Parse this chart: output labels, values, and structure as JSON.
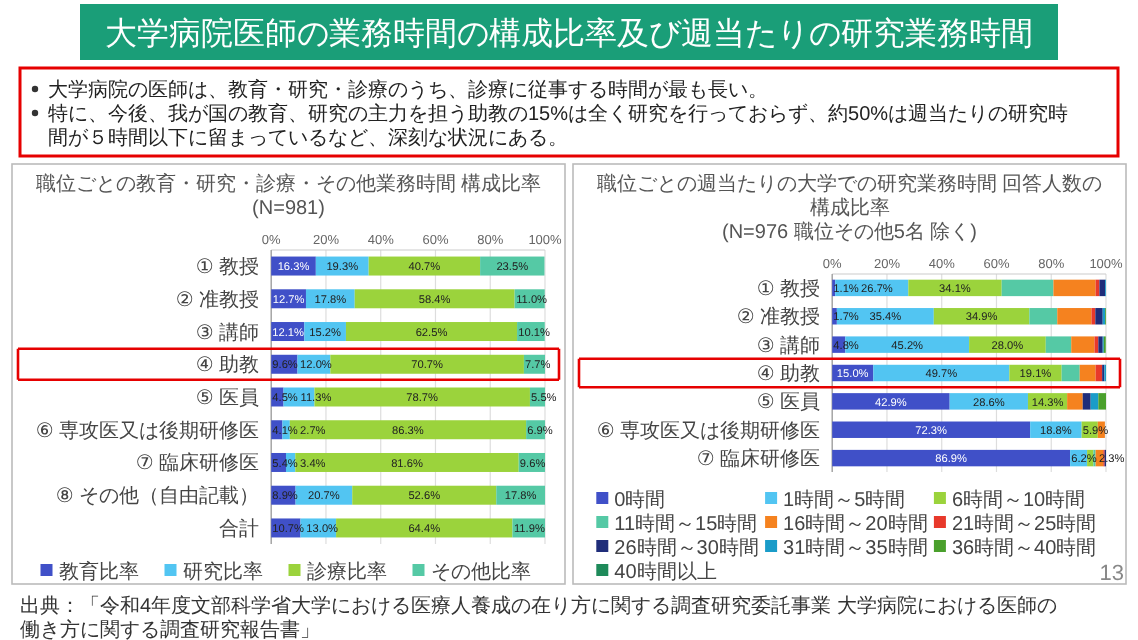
{
  "chart_data": [
    {
      "type": "other",
      "title": "大学病院医師の業務時間の構成比率及び週当たりの研究業務時間",
      "annotations": [
        "大学病院の医師は、教育・研究・診療のうち、診療に従事する時間が最も長い。",
        "特に、今後、我が国の教育、研究の主力を担う助教の15%は全く研究を行っておらず、約50%は週当たりの研究時間が５時間以下に留まっているなど、深刻な状況にある。",
        "出典：「令和4年度文部科学省大学における医療人養成の在り方に関する調査研究委託事業 大学病院における医師の働き方に関する調査研究報告書」",
        "13"
      ]
    },
    {
      "type": "bar",
      "orientation": "horizontal",
      "stacked": true,
      "title": "職位ごとの教育・研究・診療・その他業務時間 構成比率",
      "subtitle": "(N=981)",
      "categories": [
        "① 教授",
        "② 准教授",
        "③ 講師",
        "④ 助教",
        "⑤ 医員",
        "⑥ 専攻医又は後期研修医",
        "⑦ 臨床研修医",
        "⑧ その他（自由記載）",
        "合計"
      ],
      "series": [
        {
          "name": "教育比率",
          "color": "#4050c8",
          "values": [
            16.3,
            12.7,
            12.1,
            9.6,
            4.5,
            4.1,
            5.4,
            8.9,
            10.7
          ],
          "value_labels": [
            "16.3%",
            "12.7%",
            "12.1%",
            "9.6%",
            "4.5%",
            "4.1%",
            "5.4%",
            "8.9%",
            "10.7%"
          ]
        },
        {
          "name": "研究比率",
          "color": "#52c5f2",
          "values": [
            19.3,
            17.8,
            15.2,
            12.0,
            11.3,
            2.7,
            3.4,
            20.7,
            13.0
          ],
          "value_labels": [
            "19.3%",
            "17.8%",
            "15.2%",
            "12.0%",
            "11.3%",
            "2.7%",
            "3.4%",
            "20.7%",
            "13.0%"
          ]
        },
        {
          "name": "診療比率",
          "color": "#9bd33c",
          "values": [
            40.7,
            58.4,
            62.5,
            70.7,
            78.7,
            86.3,
            81.6,
            52.6,
            64.4
          ],
          "value_labels": [
            "40.7%",
            "58.4%",
            "62.5%",
            "70.7%",
            "78.7%",
            "86.3%",
            "81.6%",
            "52.6%",
            "64.4%"
          ]
        },
        {
          "name": "その他比率",
          "color": "#55c9a5",
          "values": [
            23.5,
            11.0,
            10.1,
            7.7,
            5.5,
            6.9,
            9.6,
            17.8,
            11.9
          ],
          "value_labels": [
            "23.5%",
            "11.0%",
            "10.1%",
            "7.7%",
            "5.5%",
            "6.9%",
            "9.6%",
            "17.8%",
            "11.9%"
          ]
        }
      ],
      "xlim": [
        0,
        100
      ],
      "xticks": [
        {
          "value": 0,
          "label": "0%"
        },
        {
          "value": 20,
          "label": "20%"
        },
        {
          "value": 40,
          "label": "40%"
        },
        {
          "value": 60,
          "label": "60%"
        },
        {
          "value": 80,
          "label": "80%"
        },
        {
          "value": 100,
          "label": "100%"
        }
      ],
      "grid": "x",
      "legend": "bottom"
    },
    {
      "type": "bar",
      "orientation": "horizontal",
      "stacked": true,
      "title": "職位ごとの週当たりの大学での研究業務時間 回答人数の構成比率",
      "subtitle": "(N=976 職位その他5名 除く)",
      "categories": [
        "① 教授",
        "② 准教授",
        "③ 講師",
        "④ 助教",
        "⑤ 医員",
        "⑥ 専攻医又は後期研修医",
        "⑦ 臨床研修医"
      ],
      "series": [
        {
          "name": "0時間",
          "color": "#4050c8",
          "values": [
            1.1,
            1.7,
            4.8,
            15.0,
            42.9,
            72.3,
            86.9
          ],
          "value_labels": [
            "1.1%",
            "1.7%",
            "4.8%",
            "15.0%",
            "42.9%",
            "72.3%",
            "86.9%"
          ]
        },
        {
          "name": "1時間～5時間",
          "color": "#52c5f2",
          "values": [
            26.7,
            35.4,
            45.2,
            49.7,
            28.6,
            18.8,
            6.2
          ],
          "value_labels": [
            "26.7%",
            "35.4%",
            "45.2%",
            "49.7%",
            "28.6%",
            "18.8%",
            "6.2%"
          ]
        },
        {
          "name": "6時間～10時間",
          "color": "#9bd33c",
          "values": [
            34.1,
            34.9,
            28.0,
            19.1,
            14.3,
            5.9,
            2.3
          ],
          "value_labels": [
            "34.1%",
            "34.9%",
            "28.0%",
            "19.1%",
            "14.3%",
            "5.9%",
            "2.3%"
          ]
        },
        {
          "name": "11時間～15時間",
          "color": "#55c9a5",
          "values": [
            18.9,
            10.2,
            9.3,
            6.6,
            0,
            0,
            0.8
          ]
        },
        {
          "name": "16時間～20時間",
          "color": "#f5821f",
          "values": [
            15.4,
            12.5,
            8.5,
            5.8,
            5.7,
            2.6,
            2.8
          ]
        },
        {
          "name": "21時間～25時間",
          "color": "#e8392b",
          "values": [
            1.4,
            1.4,
            1.4,
            2.4,
            0,
            null,
            0.5
          ]
        },
        {
          "name": "26時間～30時間",
          "color": "#1f2d7a",
          "values": [
            2.1,
            2.7,
            1.6,
            0.8,
            2.9,
            0,
            0.5
          ]
        },
        {
          "name": "31時間～35時間",
          "color": "#1a9cc9",
          "values": [
            0.3,
            0.9,
            0.4,
            0.6,
            2.8,
            0,
            0
          ]
        },
        {
          "name": "36時間～40時間",
          "color": "#4aa02c",
          "values": [
            0,
            0.3,
            0.7,
            0,
            2.8,
            0,
            0
          ]
        },
        {
          "name": "40時間以上",
          "color": "#1e8a5a",
          "values": [
            0,
            0,
            null,
            0,
            0,
            0,
            0
          ]
        }
      ],
      "xlim": [
        0,
        100
      ],
      "xticks": [
        {
          "value": 0,
          "label": "0%"
        },
        {
          "value": 20,
          "label": "20%"
        },
        {
          "value": 40,
          "label": "40%"
        },
        {
          "value": 60,
          "label": "60%"
        },
        {
          "value": 80,
          "label": "80%"
        },
        {
          "value": 100,
          "label": "100%"
        }
      ],
      "grid": "x",
      "legend": "bottom"
    }
  ]
}
